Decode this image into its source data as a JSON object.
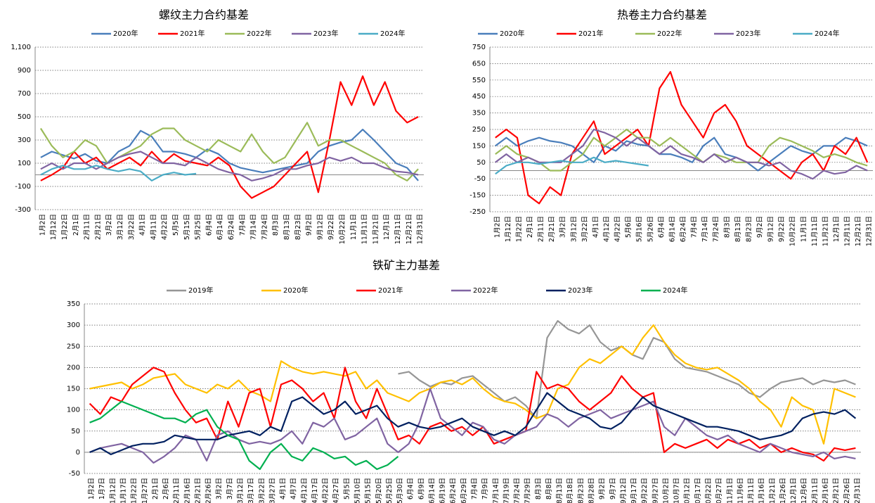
{
  "chart_data": [
    {
      "type": "line",
      "title": "螺纹主力合约基差",
      "categories": [
        "1月2日",
        "1月12日",
        "1月22日",
        "2月1日",
        "2月11日",
        "2月21日",
        "3月2日",
        "3月12日",
        "3月22日",
        "4月1日",
        "4月11日",
        "4月22日",
        "5月5日",
        "5月15日",
        "5月25日",
        "6月4日",
        "6月14日",
        "6月24日",
        "7月4日",
        "7月14日",
        "7月24日",
        "8月3日",
        "8月13日",
        "8月23日",
        "9月2日",
        "9月12日",
        "9月22日",
        "10月22日",
        "11月1日",
        "11月11日",
        "11月21日",
        "12月1日",
        "12月11日",
        "12月21日",
        "12月31日"
      ],
      "series": [
        {
          "name": "2020年",
          "color": "#4a7ebb",
          "values": [
            150,
            200,
            170,
            140,
            180,
            120,
            100,
            200,
            250,
            380,
            330,
            200,
            200,
            180,
            150,
            220,
            180,
            100,
            60,
            40,
            20,
            40,
            60,
            80,
            100,
            200,
            250,
            280,
            300,
            390,
            300,
            200,
            100,
            60,
            -50
          ]
        },
        {
          "name": "2021年",
          "color": "#ff0000",
          "values": [
            -50,
            0,
            60,
            200,
            100,
            150,
            50,
            100,
            150,
            80,
            200,
            100,
            180,
            120,
            100,
            80,
            150,
            80,
            -100,
            -200,
            -150,
            -100,
            0,
            100,
            200,
            -150,
            300,
            800,
            600,
            850,
            600,
            800,
            550,
            450,
            500
          ]
        },
        {
          "name": "2022年",
          "color": "#9bbb59",
          "values": [
            400,
            250,
            150,
            200,
            300,
            250,
            100,
            150,
            200,
            250,
            350,
            400,
            400,
            300,
            250,
            200,
            300,
            250,
            200,
            350,
            200,
            100,
            150,
            300,
            450,
            250,
            300,
            300,
            250,
            200,
            150,
            100,
            0,
            -50,
            50
          ]
        },
        {
          "name": "2023年",
          "color": "#8064a2",
          "values": [
            50,
            100,
            50,
            100,
            100,
            50,
            100,
            150,
            180,
            200,
            150,
            100,
            100,
            80,
            150,
            100,
            50,
            20,
            0,
            -50,
            -30,
            0,
            50,
            50,
            80,
            100,
            150,
            120,
            150,
            100,
            100,
            60,
            30,
            20,
            0
          ]
        },
        {
          "name": "2024年",
          "color": "#4bacc6",
          "values": [
            0,
            50,
            80,
            50,
            50,
            80,
            50,
            30,
            50,
            30,
            -50,
            0,
            20,
            0,
            10,
            null,
            null,
            null,
            null,
            null,
            null,
            null,
            null,
            null,
            null,
            null,
            null,
            null,
            null,
            null,
            null,
            null,
            null,
            null,
            null
          ]
        }
      ],
      "ylim": [
        -300,
        1100
      ],
      "yticks": [
        -300,
        -100,
        100,
        300,
        500,
        700,
        900,
        {
          "value": 1100,
          "label": "1,100"
        }
      ],
      "grid": true
    },
    {
      "type": "line",
      "title": "热卷主力合约基差",
      "categories": [
        "1月2日",
        "1月12日",
        "1月22日",
        "2月1日",
        "2月11日",
        "2月21日",
        "3月2日",
        "3月12日",
        "3月22日",
        "4月1日",
        "4月12日",
        "4月22日",
        "5月6日",
        "5月16日",
        "5月26日",
        "6月4日",
        "6月14日",
        "6月24日",
        "7月4日",
        "7月14日",
        "7月24日",
        "8月3日",
        "8月13日",
        "8月23日",
        "9月2日",
        "9月12日",
        "9月22日",
        "10月22日",
        "11月1日",
        "11月11日",
        "11月21日",
        "12月1日",
        "12月11日",
        "12月21日",
        "12月31日"
      ],
      "series": [
        {
          "name": "2020年",
          "color": "#4a7ebb",
          "values": [
            150,
            200,
            150,
            180,
            200,
            180,
            170,
            150,
            100,
            50,
            150,
            120,
            180,
            160,
            150,
            100,
            100,
            80,
            50,
            150,
            200,
            100,
            80,
            50,
            0,
            50,
            100,
            150,
            120,
            100,
            150,
            150,
            200,
            180,
            150
          ]
        },
        {
          "name": "2021年",
          "color": "#ff0000",
          "values": [
            200,
            250,
            200,
            -150,
            -200,
            -100,
            -150,
            100,
            200,
            300,
            100,
            150,
            200,
            250,
            150,
            500,
            600,
            400,
            300,
            200,
            350,
            400,
            300,
            150,
            100,
            50,
            0,
            -50,
            50,
            100,
            0,
            150,
            100,
            200,
            50
          ]
        },
        {
          "name": "2022年",
          "color": "#9bbb59",
          "values": [
            100,
            150,
            100,
            80,
            50,
            0,
            0,
            50,
            100,
            200,
            150,
            200,
            250,
            200,
            200,
            150,
            200,
            150,
            100,
            50,
            100,
            80,
            50,
            50,
            50,
            150,
            200,
            180,
            150,
            120,
            80,
            100,
            80,
            50,
            30
          ]
        },
        {
          "name": "2023年",
          "color": "#8064a2",
          "values": [
            50,
            100,
            50,
            80,
            50,
            50,
            50,
            100,
            150,
            250,
            230,
            200,
            150,
            200,
            150,
            100,
            150,
            100,
            80,
            50,
            100,
            50,
            80,
            50,
            50,
            30,
            50,
            0,
            -20,
            -50,
            0,
            -20,
            -10,
            30,
            0
          ]
        },
        {
          "name": "2024年",
          "color": "#4bacc6",
          "values": [
            -20,
            30,
            50,
            50,
            40,
            50,
            60,
            50,
            50,
            80,
            50,
            60,
            50,
            40,
            30,
            null,
            null,
            null,
            null,
            null,
            null,
            null,
            null,
            null,
            null,
            null,
            null,
            null,
            null,
            null,
            null,
            null,
            null,
            null,
            null
          ]
        }
      ],
      "ylim": [
        -250,
        750
      ],
      "yticks": [
        -250,
        -150,
        -50,
        50,
        150,
        250,
        350,
        450,
        550,
        650,
        750
      ],
      "grid": true
    },
    {
      "type": "line",
      "title": "铁矿主力基差",
      "categories": [
        "1月2日",
        "1月7日",
        "1月12日",
        "1月17日",
        "1月22日",
        "1月27日",
        "2月1日",
        "2月6日",
        "2月11日",
        "2月16日",
        "2月21日",
        "2月26日",
        "3月2日",
        "3月7日",
        "3月12日",
        "3月17日",
        "3月22日",
        "3月27日",
        "4月1日",
        "4月7日",
        "4月12日",
        "4月17日",
        "4月22日",
        "4月27日",
        "5月5日",
        "5月10日",
        "5月15日",
        "5月20日",
        "5月25日",
        "5月30日",
        "6月4日",
        "6月9日",
        "6月14日",
        "6月19日",
        "6月24日",
        "6月29日",
        "7月4日",
        "7月9日",
        "7月14日",
        "7月19日",
        "7月24日",
        "7月29日",
        "8月3日",
        "8月8日",
        "8月13日",
        "8月18日",
        "8月23日",
        "8月28日",
        "9月2日",
        "9月7日",
        "9月12日",
        "9月17日",
        "9月22日",
        "9月27日",
        "10月2日",
        "10月7日",
        "10月12日",
        "10月17日",
        "10月22日",
        "10月27日",
        "11月1日",
        "11月6日",
        "11月11日",
        "11月16日",
        "11月21日",
        "11月26日",
        "12月1日",
        "12月6日",
        "12月11日",
        "12月16日",
        "12月21日",
        "12月26日",
        "12月31日"
      ],
      "series": [
        {
          "name": "2019年",
          "color": "#969696",
          "values": [
            null,
            null,
            null,
            null,
            null,
            null,
            null,
            null,
            null,
            null,
            null,
            null,
            null,
            null,
            null,
            null,
            null,
            null,
            null,
            null,
            null,
            null,
            null,
            null,
            null,
            null,
            null,
            null,
            null,
            185,
            190,
            170,
            155,
            165,
            160,
            175,
            180,
            160,
            140,
            120,
            130,
            110,
            80,
            270,
            310,
            290,
            280,
            300,
            260,
            240,
            250,
            230,
            220,
            270,
            260,
            220,
            200,
            195,
            190,
            180,
            170,
            160,
            140,
            130,
            150,
            165,
            170,
            175,
            160,
            170,
            165,
            170,
            160
          ]
        },
        {
          "name": "2020年",
          "color": "#ffc000",
          "values": [
            150,
            155,
            160,
            165,
            150,
            160,
            175,
            180,
            185,
            160,
            150,
            140,
            160,
            150,
            170,
            145,
            135,
            120,
            215,
            200,
            190,
            185,
            190,
            185,
            180,
            190,
            150,
            170,
            140,
            130,
            120,
            140,
            150,
            165,
            170,
            160,
            175,
            150,
            130,
            120,
            115,
            100,
            80,
            90,
            150,
            160,
            200,
            220,
            210,
            230,
            250,
            230,
            270,
            300,
            260,
            230,
            210,
            200,
            195,
            200,
            185,
            170,
            150,
            120,
            100,
            60,
            130,
            110,
            100,
            20,
            150,
            140,
            130
          ]
        },
        {
          "name": "2021年",
          "color": "#ff0000",
          "values": [
            115,
            90,
            130,
            120,
            160,
            180,
            200,
            190,
            140,
            100,
            70,
            80,
            30,
            120,
            60,
            140,
            150,
            60,
            160,
            170,
            150,
            120,
            140,
            80,
            200,
            120,
            80,
            150,
            90,
            30,
            40,
            20,
            60,
            70,
            50,
            60,
            40,
            60,
            20,
            30,
            40,
            50,
            190,
            150,
            160,
            150,
            120,
            100,
            120,
            140,
            180,
            150,
            130,
            140,
            0,
            20,
            10,
            20,
            30,
            10,
            30,
            20,
            30,
            10,
            20,
            0,
            10,
            0,
            -5,
            -20,
            10,
            5,
            10
          ]
        },
        {
          "name": "2022年",
          "color": "#8064a2",
          "values": [
            0,
            10,
            15,
            20,
            10,
            0,
            -25,
            -10,
            10,
            40,
            30,
            -20,
            40,
            50,
            30,
            20,
            25,
            20,
            30,
            50,
            20,
            70,
            60,
            80,
            30,
            40,
            60,
            80,
            20,
            0,
            20,
            70,
            150,
            80,
            60,
            40,
            70,
            60,
            30,
            20,
            40,
            50,
            60,
            90,
            80,
            60,
            80,
            90,
            100,
            80,
            90,
            100,
            110,
            120,
            60,
            40,
            80,
            60,
            40,
            30,
            40,
            20,
            10,
            0,
            20,
            10,
            0,
            -5,
            -10,
            0,
            -15,
            -10,
            -15
          ]
        },
        {
          "name": "2023年",
          "color": "#002060",
          "values": [
            0,
            10,
            -5,
            5,
            15,
            20,
            20,
            25,
            40,
            35,
            30,
            30,
            30,
            40,
            45,
            50,
            40,
            60,
            50,
            120,
            130,
            110,
            90,
            100,
            120,
            90,
            100,
            110,
            80,
            60,
            70,
            60,
            55,
            60,
            70,
            80,
            60,
            50,
            40,
            50,
            40,
            60,
            100,
            140,
            120,
            100,
            90,
            80,
            60,
            55,
            70,
            100,
            130,
            110,
            100,
            90,
            80,
            70,
            60,
            60,
            55,
            50,
            40,
            30,
            35,
            40,
            50,
            80,
            90,
            95,
            90,
            100,
            80
          ]
        },
        {
          "name": "2024年",
          "color": "#00b050",
          "values": [
            70,
            80,
            100,
            120,
            110,
            100,
            90,
            80,
            80,
            70,
            90,
            100,
            60,
            40,
            30,
            -20,
            -40,
            0,
            20,
            -10,
            -20,
            10,
            0,
            -15,
            -10,
            -30,
            -20,
            -40,
            -30,
            -10,
            null,
            null,
            null,
            null,
            null,
            null,
            null,
            null,
            null,
            null,
            null,
            null,
            null,
            null,
            null,
            null,
            null,
            null,
            null,
            null,
            null,
            null,
            null,
            null,
            null,
            null,
            null,
            null,
            null,
            null,
            null,
            null,
            null,
            null,
            null,
            null,
            null,
            null,
            null,
            null,
            null,
            null,
            null
          ]
        }
      ],
      "ylim": [
        -50,
        350
      ],
      "yticks": [
        -50,
        0,
        50,
        100,
        150,
        200,
        250,
        300,
        350
      ],
      "grid": true
    }
  ]
}
